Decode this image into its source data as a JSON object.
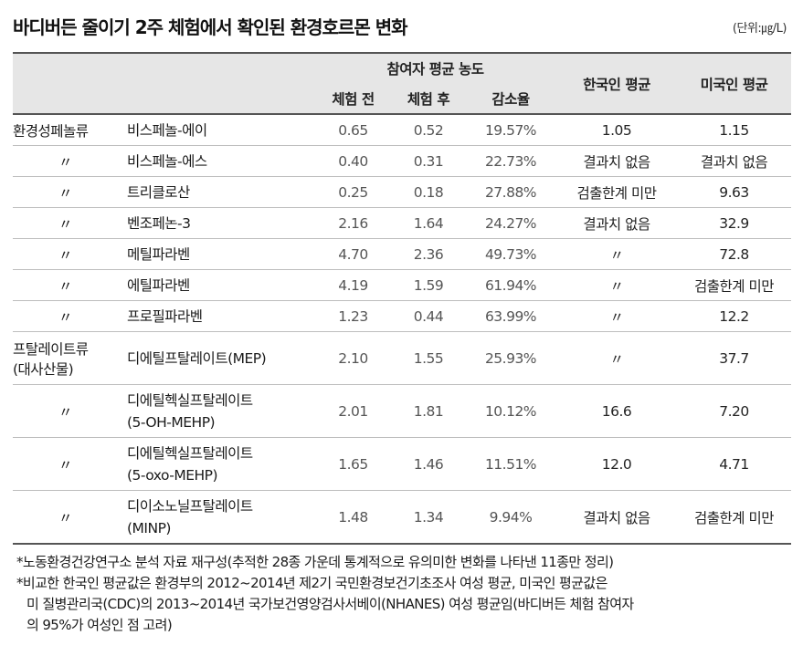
{
  "title": "바디버든 줄이기 2주 체험에서 확인된 환경호르몬 변화",
  "unit": "(단위:㎍/L)",
  "header": {
    "group": "참여자 평균 농도",
    "before": "체험 전",
    "after": "체험 후",
    "reduction": "감소율",
    "korean": "한국인 평균",
    "us": "미국인 평균"
  },
  "rows": [
    {
      "category": "환경성페놀류",
      "name": [
        "비스페놀-에이"
      ],
      "before": "0.65",
      "after": "0.52",
      "reduction": "19.57%",
      "korean": "1.05",
      "us": "1.15"
    },
    {
      "category": "〃",
      "name": [
        "비스페놀-에스"
      ],
      "before": "0.40",
      "after": "0.31",
      "reduction": "22.73%",
      "korean": "결과치 없음",
      "us": "결과치 없음"
    },
    {
      "category": "〃",
      "name": [
        "트리클로산"
      ],
      "before": "0.25",
      "after": "0.18",
      "reduction": "27.88%",
      "korean": "검출한계 미만",
      "us": "9.63"
    },
    {
      "category": "〃",
      "name": [
        "벤조페논-3"
      ],
      "before": "2.16",
      "after": "1.64",
      "reduction": "24.27%",
      "korean": "결과치 없음",
      "us": "32.9"
    },
    {
      "category": "〃",
      "name": [
        "메틸파라벤"
      ],
      "before": "4.70",
      "after": "2.36",
      "reduction": "49.73%",
      "korean": "〃",
      "us": "72.8"
    },
    {
      "category": "〃",
      "name": [
        "에틸파라벤"
      ],
      "before": "4.19",
      "after": "1.59",
      "reduction": "61.94%",
      "korean": "〃",
      "us": "검출한계 미만"
    },
    {
      "category": "〃",
      "name": [
        "프로필파라벤"
      ],
      "before": "1.23",
      "after": "0.44",
      "reduction": "63.99%",
      "korean": "〃",
      "us": "12.2"
    },
    {
      "category": [
        "프탈레이트류",
        "(대사산물)"
      ],
      "name": [
        "디에틸프탈레이트(MEP)"
      ],
      "before": "2.10",
      "after": "1.55",
      "reduction": "25.93%",
      "korean": "〃",
      "us": "37.7"
    },
    {
      "category": "〃",
      "name": [
        "디에틸헥실프탈레이트",
        "(5-OH-MEHP)"
      ],
      "before": "2.01",
      "after": "1.81",
      "reduction": "10.12%",
      "korean": "16.6",
      "us": "7.20"
    },
    {
      "category": "〃",
      "name": [
        "디에틸헥실프탈레이트",
        "(5-oxo-MEHP)"
      ],
      "before": "1.65",
      "after": "1.46",
      "reduction": "11.51%",
      "korean": "12.0",
      "us": "4.71"
    },
    {
      "category": "〃",
      "name": [
        "디이소노닐프탈레이트",
        "(MINP)"
      ],
      "before": "1.48",
      "after": "1.34",
      "reduction": "9.94%",
      "korean": "결과치 없음",
      "us": "검출한계 미만"
    }
  ],
  "notes": [
    "*노동환경건강연구소 분석 자료 재구성(추적한 28종 가운데 통계적으로 유의미한 변화를 나타낸 11종만 정리)",
    "*비교한 한국인 평균값은 환경부의 2012~2014년 제2기 국민환경보건기초조사 여성 평균, 미국인 평균값은",
    "미 질병관리국(CDC)의 2013~2014년 국가보건영양검사서베이(NHANES) 여성 평균임(바디버든 체험 참여자",
    "의 95%가 여성인 점 고려)"
  ]
}
